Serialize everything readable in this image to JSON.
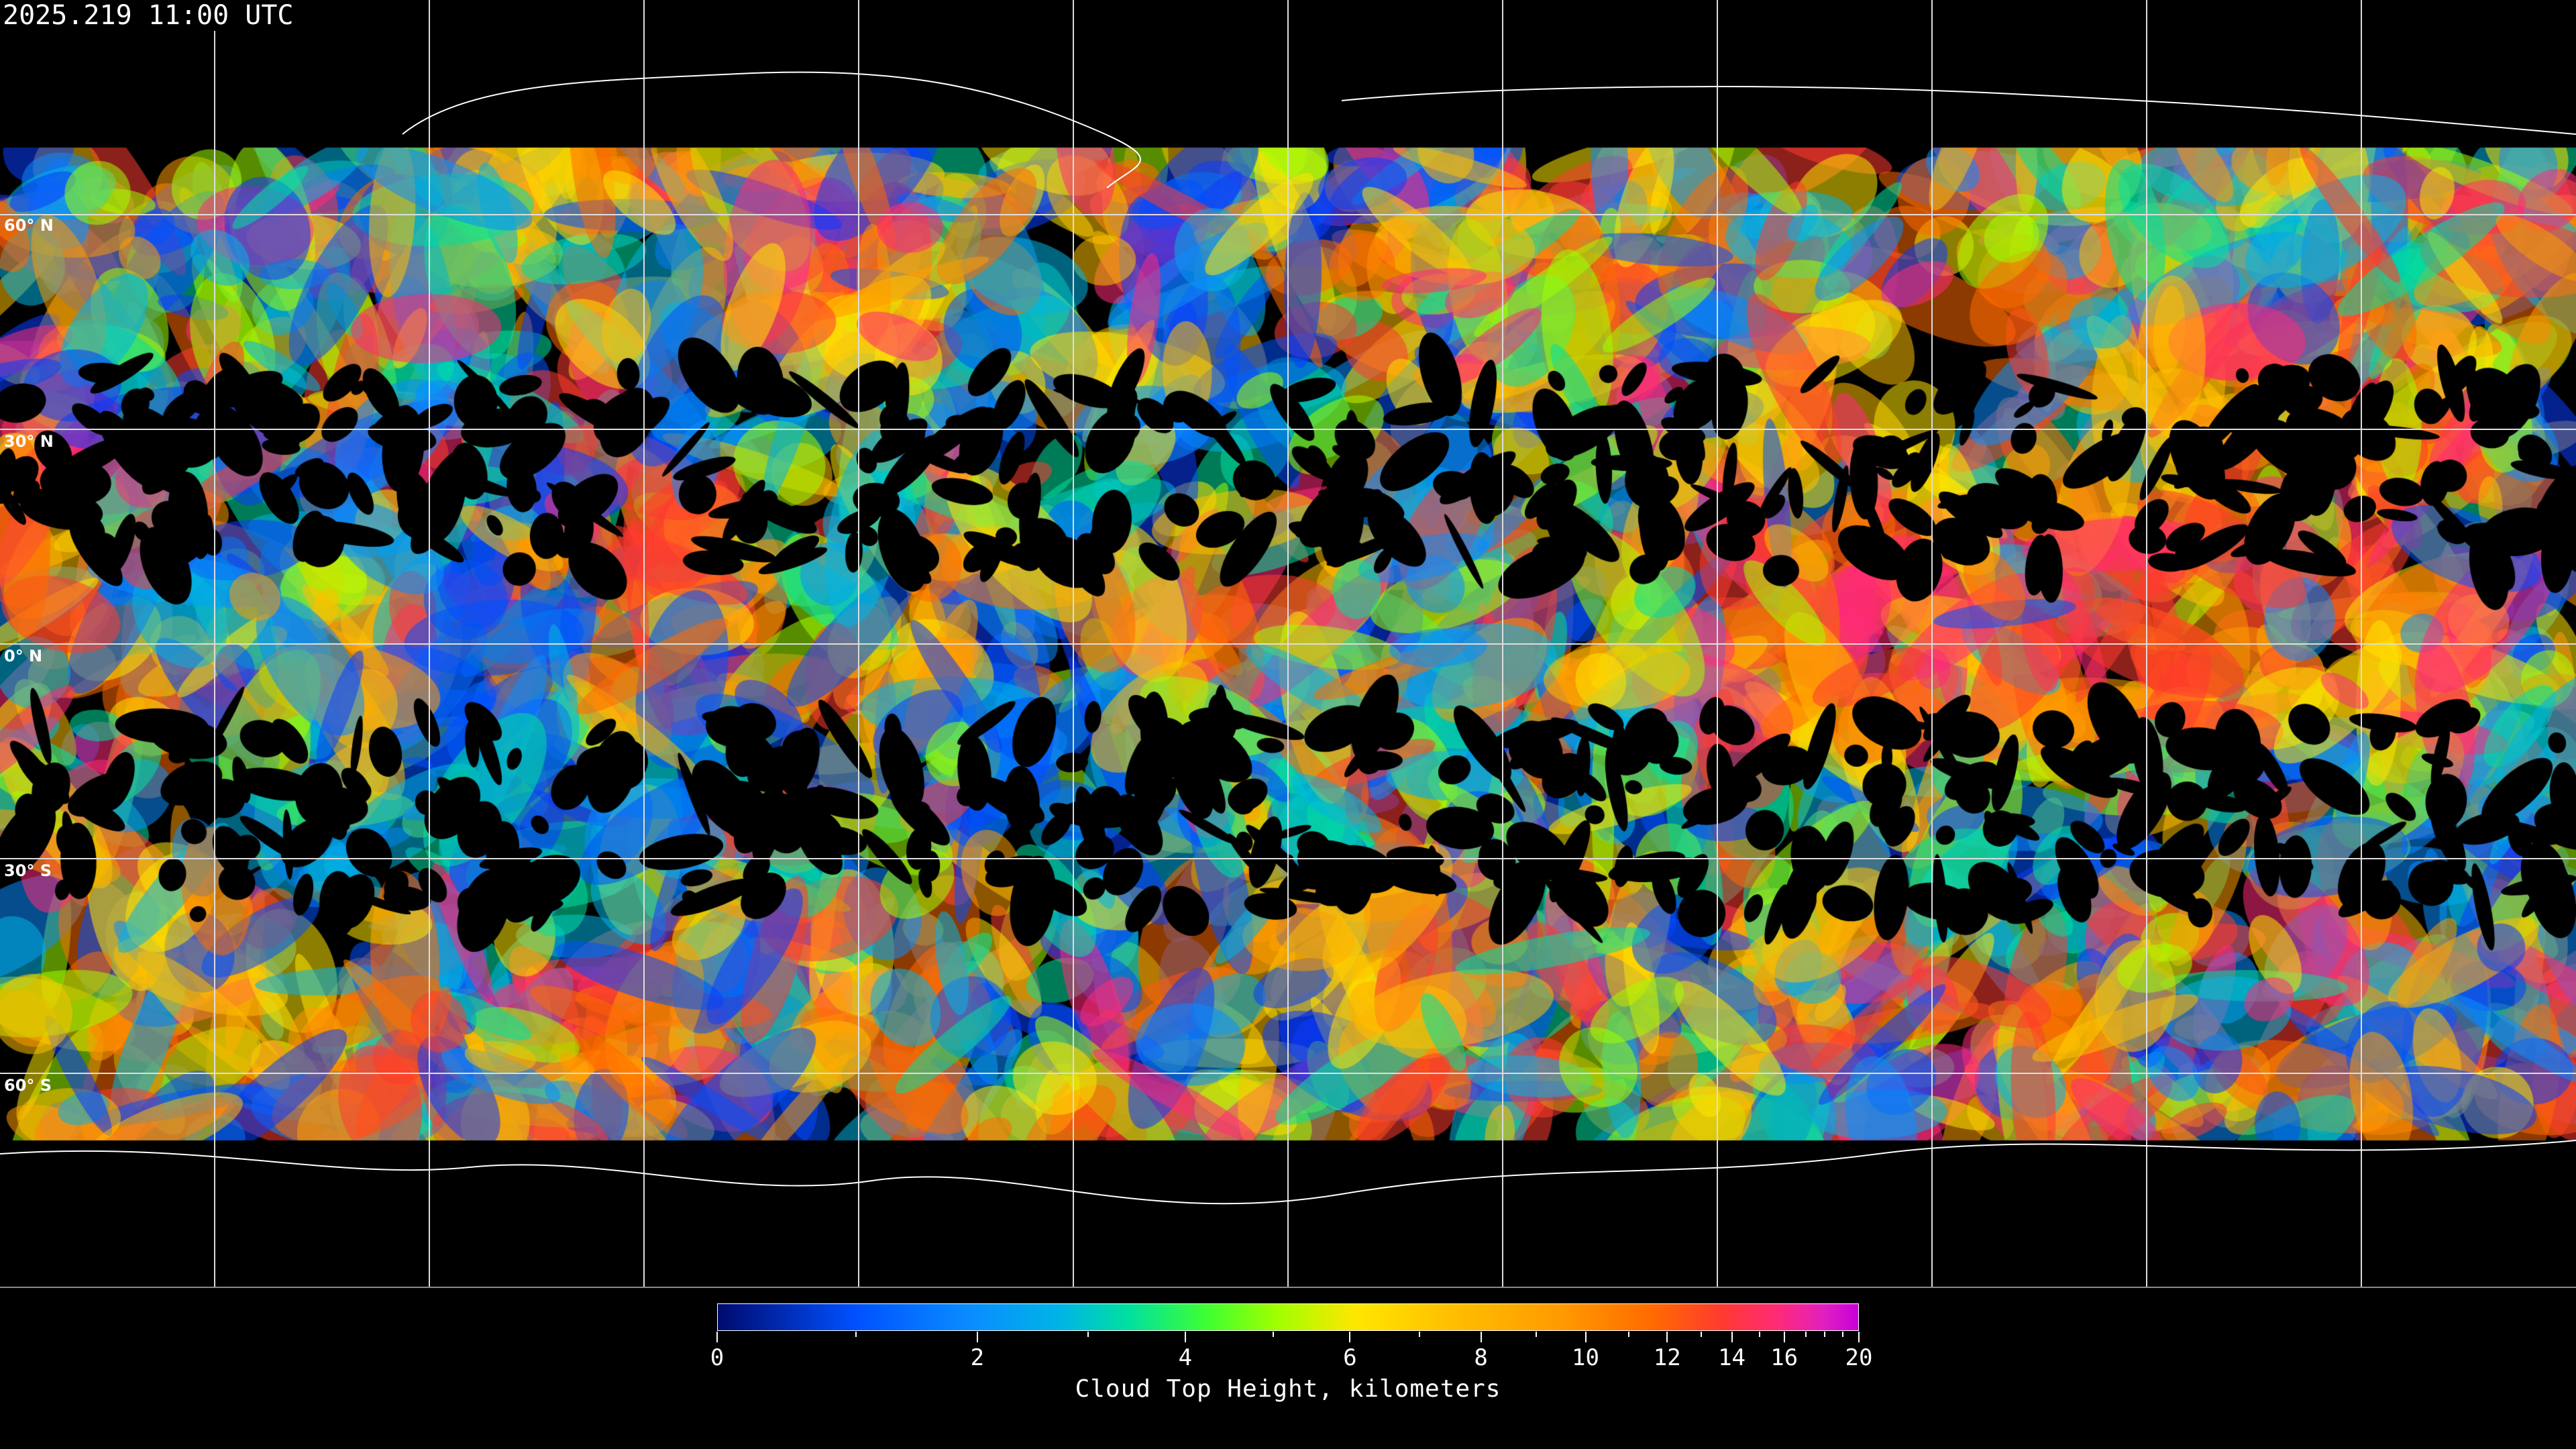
{
  "timestamp": "2025.219 11:00 UTC",
  "map": {
    "product": "Cloud Top Height",
    "projection": "equirectangular",
    "gridline_color": "#ffffff",
    "coastline_color": "#ffffff",
    "no_data_color": "#000000",
    "latitude_labels": [
      "60° N",
      "30° N",
      "0° N",
      "30° S",
      "60° S"
    ]
  },
  "colorbar": {
    "title": "Cloud Top Height, kilometers",
    "min": 0,
    "max": 20,
    "tick_labels": [
      "0",
      "2",
      "4",
      "6",
      "8",
      "10",
      "12",
      "14",
      "16",
      "20"
    ],
    "minor_ticks": [
      1,
      3,
      5,
      7,
      9,
      11,
      13,
      15,
      17,
      18,
      19
    ],
    "colors": [
      "#000a6e",
      "#0050ff",
      "#00b4e6",
      "#40ff30",
      "#ffe600",
      "#ff9a00",
      "#ff3a30",
      "#c800d8"
    ]
  }
}
